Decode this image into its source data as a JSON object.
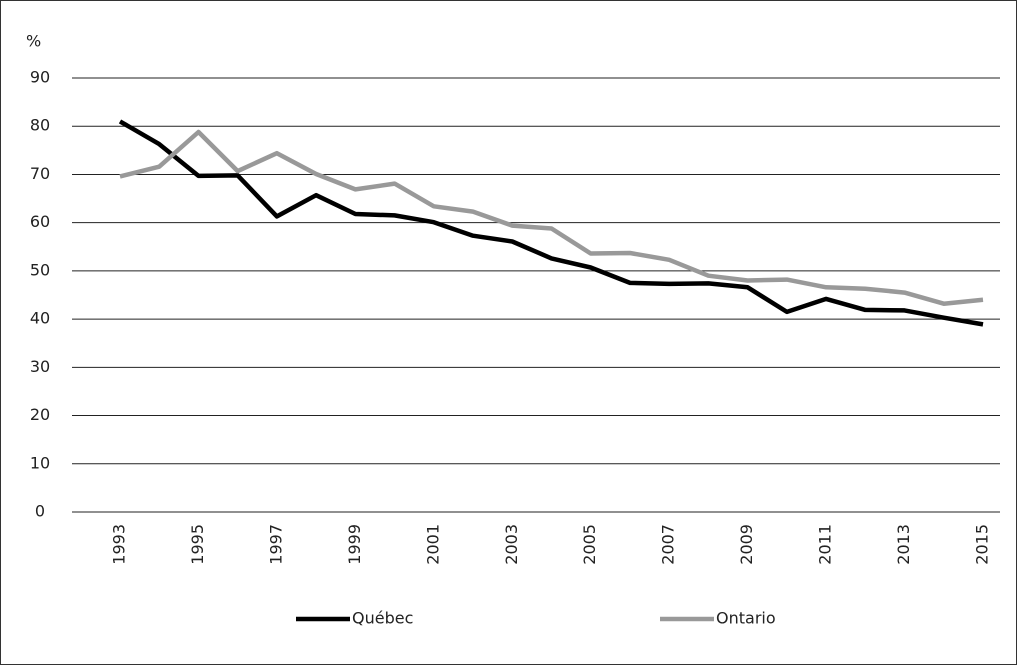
{
  "chart_data": {
    "type": "line",
    "y_label": "%",
    "categories": [
      "1993",
      null,
      "1995",
      null,
      "1997",
      null,
      "1999",
      null,
      "2001",
      null,
      "2003",
      null,
      "2005",
      null,
      "2007",
      null,
      "2009",
      null,
      "2011",
      null,
      "2013",
      null,
      "2015"
    ],
    "series": [
      {
        "name": "Québec",
        "color": "#000000",
        "values": [
          81,
          76.3,
          69.7,
          69.8,
          61.3,
          65.7,
          61.8,
          61.5,
          60.1,
          57.3,
          56.1,
          52.6,
          50.7,
          47.5,
          47.3,
          47.4,
          46.6,
          41.5,
          44.2,
          41.9,
          41.8,
          40.3,
          38.9
        ]
      },
      {
        "name": "Ontario",
        "color": "#999999",
        "values": [
          69.6,
          71.6,
          78.8,
          70.7,
          74.4,
          70.1,
          66.9,
          68.1,
          63.4,
          62.3,
          59.4,
          58.8,
          53.6,
          53.7,
          52.3,
          49.0,
          48.0,
          48.2,
          46.6,
          46.3,
          45.5,
          43.2,
          44.0
        ]
      }
    ],
    "ylim": [
      0,
      90
    ],
    "yticks": [
      0,
      10,
      20,
      30,
      40,
      50,
      60,
      70,
      80,
      90
    ],
    "grid": true,
    "legend": "bottom"
  }
}
